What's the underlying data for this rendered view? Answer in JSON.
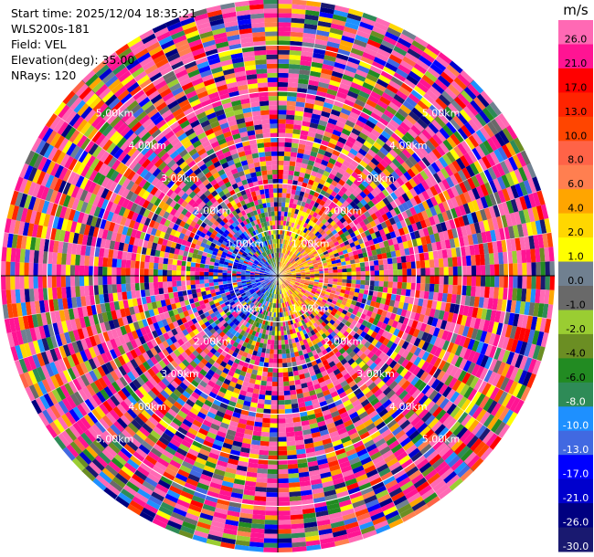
{
  "info": {
    "start_time": "Start time: 2025/12/04 18:35:21",
    "station": "WLS200s-181",
    "field": "Field: VEL",
    "elevation": "Elevation(deg): 35.00",
    "nrays": "NRays: 120"
  },
  "chart_data": {
    "type": "heatmap",
    "projection": "polar-ppi",
    "field": "VEL",
    "units": "m/s",
    "nrays": 120,
    "max_range_km": 6.0,
    "range_ring_labels": [
      "1.00km",
      "2.00km",
      "3.00km",
      "4.00km",
      "5.00km"
    ],
    "range_ring_km": [
      1,
      2,
      3,
      4,
      5
    ],
    "colorbar": {
      "title": "m/s",
      "ticks": [
        "26.0",
        "21.0",
        "17.0",
        "13.0",
        "10.0",
        "8.0",
        "6.0",
        "4.0",
        "2.0",
        "1.0",
        "0.0",
        "-1.0",
        "-2.0",
        "-4.0",
        "-6.0",
        "-8.0",
        "-10.0",
        "-13.0",
        "-17.0",
        "-21.0",
        "-26.0",
        "-30.0"
      ],
      "colors": [
        "#ff69b4",
        "#ff1493",
        "#ff0000",
        "#ff2400",
        "#ff4500",
        "#ff6347",
        "#ff7f50",
        "#ffa500",
        "#ffd700",
        "#ffff00",
        "#708090",
        "#696969",
        "#9acd32",
        "#6b8e23",
        "#228b22",
        "#2e8b57",
        "#1e90ff",
        "#4169e1",
        "#0000ff",
        "#0000cd",
        "#000080",
        "#191970"
      ]
    }
  }
}
